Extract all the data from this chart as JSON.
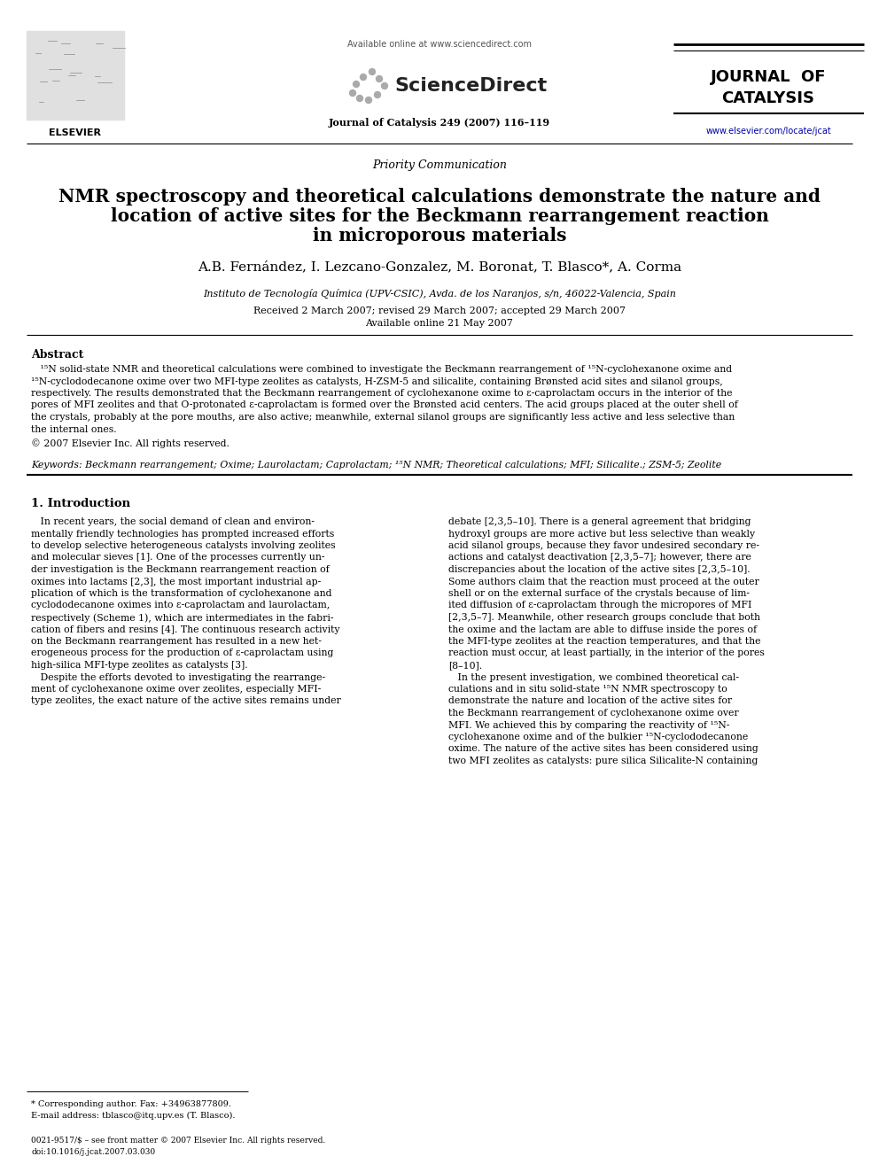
{
  "bg_color": "#ffffff",
  "title_main_line1": "NMR spectroscopy and theoretical calculations demonstrate the nature and",
  "title_main_line2": "location of active sites for the Beckmann rearrangement reaction",
  "title_main_line3": "in microporous materials",
  "authors": "A.B. Fernández, I. Lezcano-Gonzalez, M. Boronat, T. Blasco*, A. Corma",
  "affiliation": "Instituto de Tecnología Química (UPV-CSIC), Avda. de los Naranjos, s/n, 46022-Valencia, Spain",
  "received": "Received 2 March 2007; revised 29 March 2007; accepted 29 March 2007",
  "available": "Available online 21 May 2007",
  "section_label": "Priority Communication",
  "journal_header": "Available online at www.sciencedirect.com",
  "journal_name": "Journal of Catalysis 249 (2007) 116–119",
  "sciencedirect_text": "ScienceDirect",
  "journal_title1": "JOURNAL  OF",
  "journal_title2": "CATALYSIS",
  "journal_url": "www.elsevier.com/locate/jcat",
  "elsevier_text": "ELSEVIER",
  "abstract_title": "Abstract",
  "abstract_line1": "   ¹⁵N solid-state NMR and theoretical calculations were combined to investigate the Beckmann rearrangement of ¹⁵N-cyclohexanone oxime and",
  "abstract_line2": "¹⁵N-cyclododecanone oxime over two MFI-type zeolites as catalysts, H-ZSM-5 and silicalite, containing Brønsted acid sites and silanol groups,",
  "abstract_line3": "respectively. The results demonstrated that the Beckmann rearrangement of cyclohexanone oxime to ε-caprolactam occurs in the interior of the",
  "abstract_line4": "pores of MFI zeolites and that O-protonated ε-caprolactam is formed over the Brønsted acid centers. The acid groups placed at the outer shell of",
  "abstract_line5": "the crystals, probably at the pore mouths, are also active; meanwhile, external silanol groups are significantly less active and less selective than",
  "abstract_line6": "the internal ones.",
  "abstract_copyright": "© 2007 Elsevier Inc. All rights reserved.",
  "keywords_line": "Keywords: Beckmann rearrangement; Oxime; Laurolactam; Caprolactam; ¹⁵N NMR; Theoretical calculations; MFI; Silicalite.; ZSM-5; Zeolite",
  "section1_title": "1. Introduction",
  "col1_lines": [
    "   In recent years, the social demand of clean and environ-",
    "mentally friendly technologies has prompted increased efforts",
    "to develop selective heterogeneous catalysts involving zeolites",
    "and molecular sieves [1]. One of the processes currently un-",
    "der investigation is the Beckmann rearrangement reaction of",
    "oximes into lactams [2,3], the most important industrial ap-",
    "plication of which is the transformation of cyclohexanone and",
    "cyclododecanone oximes into ε-caprolactam and laurolactam,",
    "respectively (Scheme 1), which are intermediates in the fabri-",
    "cation of fibers and resins [4]. The continuous research activity",
    "on the Beckmann rearrangement has resulted in a new het-",
    "erogeneous process for the production of ε-caprolactam using",
    "high-silica MFI-type zeolites as catalysts [3].",
    "   Despite the efforts devoted to investigating the rearrange-",
    "ment of cyclohexanone oxime over zeolites, especially MFI-",
    "type zeolites, the exact nature of the active sites remains under"
  ],
  "col2_lines": [
    "debate [2,3,5–10]. There is a general agreement that bridging",
    "hydroxyl groups are more active but less selective than weakly",
    "acid silanol groups, because they favor undesired secondary re-",
    "actions and catalyst deactivation [2,3,5–7]; however, there are",
    "discrepancies about the location of the active sites [2,3,5–10].",
    "Some authors claim that the reaction must proceed at the outer",
    "shell or on the external surface of the crystals because of lim-",
    "ited diffusion of ε-caprolactam through the micropores of MFI",
    "[2,3,5–7]. Meanwhile, other research groups conclude that both",
    "the oxime and the lactam are able to diffuse inside the pores of",
    "the MFI-type zeolites at the reaction temperatures, and that the",
    "reaction must occur, at least partially, in the interior of the pores",
    "[8–10].",
    "   In the present investigation, we combined theoretical cal-",
    "culations and in situ solid-state ¹⁵N NMR spectroscopy to",
    "demonstrate the nature and location of the active sites for",
    "the Beckmann rearrangement of cyclohexanone oxime over",
    "MFI. We achieved this by comparing the reactivity of ¹⁵N-",
    "cyclohexanone oxime and of the bulkier ¹⁵N-cyclododecanone",
    "oxime. The nature of the active sites has been considered using",
    "two MFI zeolites as catalysts: pure silica Silicalite-N containing"
  ],
  "footnote_star": "* Corresponding author. Fax: +34963877809.",
  "footnote_email": "E-mail address: tblasco@itq.upv.es (T. Blasco).",
  "footer_issn": "0021-9517/$ – see front matter © 2007 Elsevier Inc. All rights reserved.",
  "footer_doi": "doi:10.1016/j.jcat.2007.03.030"
}
